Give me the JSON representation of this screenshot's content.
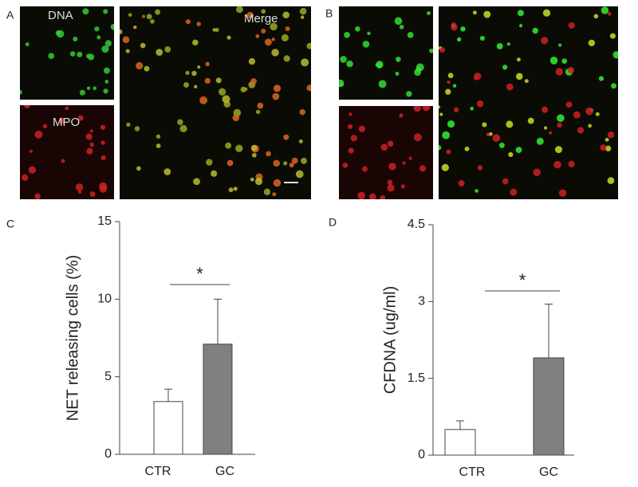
{
  "panel_labels": [
    "A",
    "B",
    "C",
    "D"
  ],
  "image_labels": {
    "dna": "DNA",
    "mpo": "MPO",
    "merge": "Merge"
  },
  "chart_data": [
    {
      "type": "bar",
      "ylabel": "NET releasing cells (%)",
      "categories": [
        "CTR",
        "GC"
      ],
      "values": [
        3.4,
        7.1
      ],
      "errors": [
        0.8,
        2.9
      ],
      "colors": [
        "#ffffff",
        "#808080"
      ],
      "ylim": [
        0,
        15
      ],
      "yticks": [
        0,
        5,
        10,
        15
      ],
      "annotation": "*"
    },
    {
      "type": "bar",
      "ylabel": "CFDNA (ug/ml)",
      "categories": [
        "CTR",
        "GC"
      ],
      "values": [
        0.5,
        1.9
      ],
      "errors": [
        0.17,
        1.05
      ],
      "colors": [
        "#ffffff",
        "#808080"
      ],
      "ylim": [
        0,
        4.5
      ],
      "yticks": [
        0,
        1.5,
        3,
        4.5
      ],
      "annotation": "*"
    }
  ]
}
